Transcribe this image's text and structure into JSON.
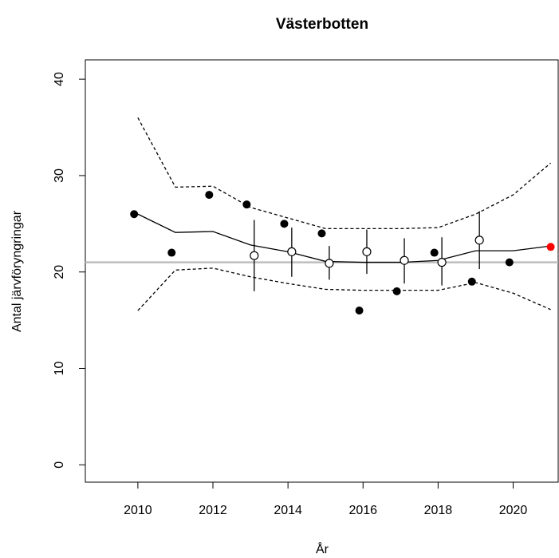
{
  "chart_data": {
    "type": "scatter",
    "title": "Västerbotten",
    "x_label": "År",
    "y_label": "Antal järvföryngringar",
    "xlim": [
      2008.6,
      2021.2
    ],
    "ylim": [
      -1.8,
      42
    ],
    "xticks": [
      2010,
      2012,
      2014,
      2016,
      2018,
      2020
    ],
    "yticks": [
      0,
      10,
      20,
      30,
      40
    ],
    "observed": {
      "x": [
        2009.9,
        2010.9,
        2011.9,
        2012.9,
        2013.9,
        2014.9,
        2015.9,
        2016.9,
        2017.9,
        2018.9,
        2019.9
      ],
      "values": [
        26,
        22,
        28,
        27,
        25,
        24,
        16,
        18,
        22,
        19,
        21
      ],
      "color": "#000000"
    },
    "latest": {
      "x": [
        2021
      ],
      "values": [
        22.6
      ],
      "color": "#ff0000"
    },
    "estimates": {
      "x": [
        2013.1,
        2014.1,
        2015.1,
        2016.1,
        2017.1,
        2018.1,
        2019.1
      ],
      "values": [
        21.7,
        22.1,
        20.9,
        22.1,
        21.2,
        21.0,
        23.3
      ],
      "lower": [
        18,
        19.5,
        19.2,
        19.8,
        18.8,
        18.6,
        20.3
      ],
      "upper": [
        25.4,
        24.6,
        22.7,
        24.4,
        23.5,
        23.6,
        26.3
      ],
      "color": "#000000"
    },
    "trend": {
      "x": [
        2010,
        2011,
        2012,
        2013,
        2014,
        2015,
        2016,
        2017,
        2018,
        2019,
        2020,
        2021
      ],
      "values": [
        26,
        24.1,
        24.2,
        22.8,
        22.1,
        21.1,
        21.0,
        21.0,
        21.2,
        22.2,
        22.2,
        22.7
      ],
      "lower": [
        16,
        20.2,
        20.4,
        19.5,
        18.8,
        18.2,
        18.1,
        18.1,
        18.1,
        18.9,
        17.8,
        16.1
      ],
      "upper": [
        36,
        28.8,
        28.9,
        26.7,
        25.6,
        24.5,
        24.5,
        24.5,
        24.6,
        26.0,
        28.0,
        31.3
      ],
      "color": "#000000"
    },
    "reference_line": {
      "value": 21,
      "color": "#bebebe"
    }
  }
}
